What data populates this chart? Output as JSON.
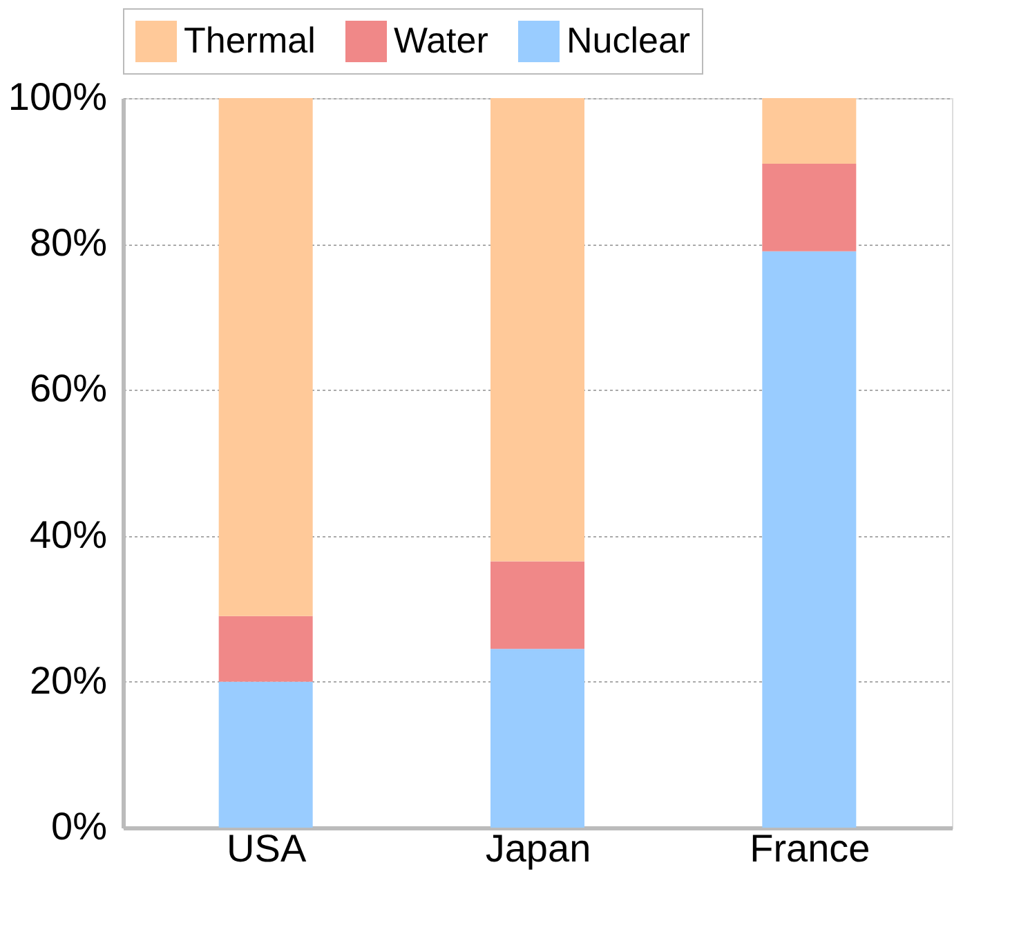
{
  "chart_data": {
    "type": "bar",
    "stacked": true,
    "categories": [
      "USA",
      "Japan",
      "France"
    ],
    "series": [
      {
        "name": "Nuclear",
        "color": "#99ccff",
        "values": [
          20,
          24.5,
          79
        ]
      },
      {
        "name": "Water",
        "color": "#f08888",
        "values": [
          9,
          12,
          12
        ]
      },
      {
        "name": "Thermal",
        "color": "#ffc999",
        "values": [
          71,
          63.5,
          9
        ]
      }
    ],
    "ylim": [
      0,
      100
    ],
    "yticks": [
      {
        "value": 0,
        "label": "0%"
      },
      {
        "value": 20,
        "label": "20%"
      },
      {
        "value": 40,
        "label": "40%"
      },
      {
        "value": 60,
        "label": "60%"
      },
      {
        "value": 80,
        "label": "80%"
      },
      {
        "value": 100,
        "label": "100%"
      }
    ],
    "grid": "y",
    "legend": "top"
  }
}
